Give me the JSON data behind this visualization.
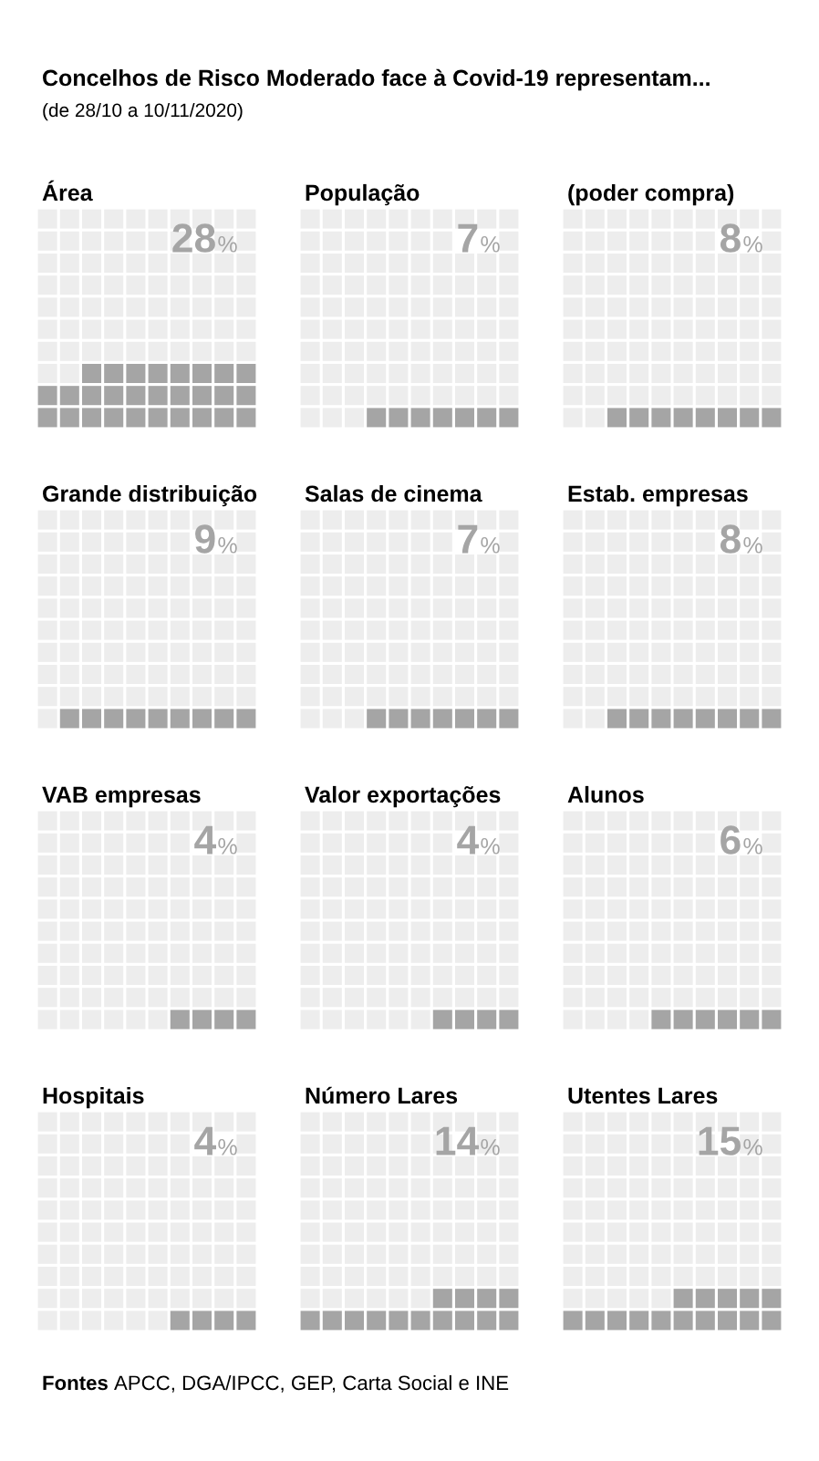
{
  "chart_data": {
    "type": "other",
    "title": "Concelhos de Risco Moderado face à Covid-19 representam...",
    "subtitle": "(de 28/10 a 10/11/2020)",
    "categories": [
      "Área",
      "População",
      "(poder compra)",
      "Grande distribuição",
      "Salas de cinema",
      "Estab. empresas",
      "VAB empresas",
      "Valor exportações",
      "Alunos",
      "Hospitais",
      "Número Lares",
      "Utentes Lares"
    ],
    "values": [
      28,
      7,
      8,
      9,
      7,
      8,
      4,
      4,
      6,
      4,
      14,
      15
    ],
    "value_labels": [
      "28%",
      "7%",
      "8%",
      "9%",
      "7%",
      "8%",
      "4%",
      "4%",
      "6%",
      "4%",
      "14%",
      "15%"
    ],
    "color": "#a5a5a5",
    "annotations": [
      "Fontes APCC, DGA/IPCC, GEP, Carta Social e INE"
    ]
  }
}
